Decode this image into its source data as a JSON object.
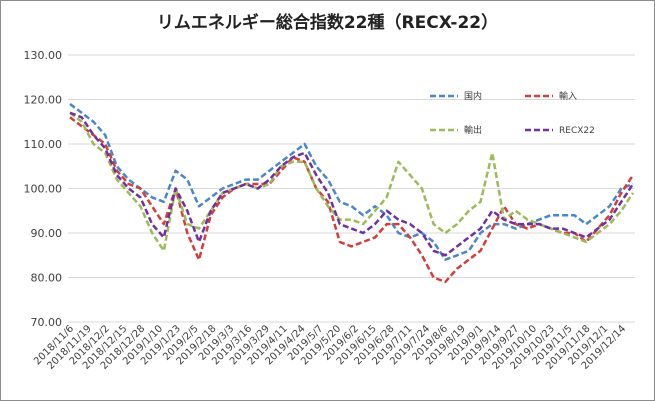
{
  "chart_data": {
    "type": "line",
    "title": "リムエネルギー総合指数22種（RECX-22）",
    "ylim": [
      70,
      130
    ],
    "yticks": [
      "70.00",
      "80.00",
      "90.00",
      "100.00",
      "110.00",
      "120.00",
      "130.00"
    ],
    "xticks": [
      "2018/11/6",
      "2018/11/19",
      "2018/12/2",
      "2018/12/15",
      "2018/12/28",
      "2019/1/10",
      "2019/1/23",
      "2019/2/5",
      "2019/2/18",
      "2019/3/3",
      "2019/3/16",
      "2019/3/29",
      "2019/4/11",
      "2019/4/24",
      "2019/5/7",
      "2019/5/20",
      "2019/6/2",
      "2019/6/15",
      "2019/6/28",
      "2019/7/11",
      "2019/7/24",
      "2019/8/6",
      "2019/8/19",
      "2019/9/1",
      "2019/9/14",
      "2019/9/27",
      "2019/10/10",
      "2019/10/23",
      "2019/11/5",
      "2019/11/18",
      "2019/12/1",
      "2019/12/14"
    ],
    "legend_placement": "top-right",
    "grid": "horizontal",
    "series": [
      {
        "name": "国内",
        "color": "#4a86c8",
        "values": [
          119,
          117,
          115,
          112,
          105,
          102,
          100,
          98,
          97,
          104,
          102,
          96,
          98,
          100,
          101,
          102,
          102,
          104,
          106,
          108,
          110,
          105,
          102,
          97,
          96,
          94,
          96,
          94,
          90,
          89,
          90,
          88,
          84,
          85,
          86,
          90,
          92,
          92,
          91,
          92,
          93,
          94,
          94,
          94,
          92,
          94,
          96,
          100,
          101
        ]
      },
      {
        "name": "輸入",
        "color": "#d43d3a",
        "values": [
          116,
          114,
          112,
          110,
          104,
          101,
          100,
          96,
          92,
          100,
          90,
          84,
          94,
          98,
          100,
          101,
          101,
          101,
          104,
          107,
          106,
          100,
          97,
          88,
          87,
          88,
          89,
          92,
          92,
          89,
          85,
          80,
          79,
          82,
          84,
          86,
          91,
          96,
          92,
          91,
          92,
          91,
          90,
          90,
          88,
          91,
          94,
          99,
          103
        ]
      },
      {
        "name": "輸出",
        "color": "#9bbb59",
        "values": [
          117,
          115,
          110,
          108,
          102,
          99,
          96,
          90,
          86,
          100,
          92,
          91,
          95,
          99,
          100,
          101,
          100,
          101,
          105,
          106,
          106,
          100,
          96,
          93,
          93,
          92,
          95,
          98,
          106,
          103,
          100,
          92,
          90,
          92,
          95,
          97,
          108,
          93,
          95,
          93,
          92,
          91,
          90,
          89,
          88,
          90,
          92,
          95,
          99
        ]
      },
      {
        "name": "RECX22",
        "color": "#7030a0",
        "values": [
          117,
          116,
          112,
          109,
          103,
          100,
          98,
          92,
          89,
          100,
          95,
          88,
          95,
          99,
          100,
          101,
          100,
          102,
          105,
          107,
          108,
          103,
          99,
          92,
          91,
          90,
          92,
          95,
          93,
          92,
          90,
          86,
          85,
          87,
          89,
          91,
          95,
          93,
          92,
          92,
          92,
          91,
          91,
          90,
          89,
          91,
          93,
          97,
          101
        ]
      }
    ]
  }
}
